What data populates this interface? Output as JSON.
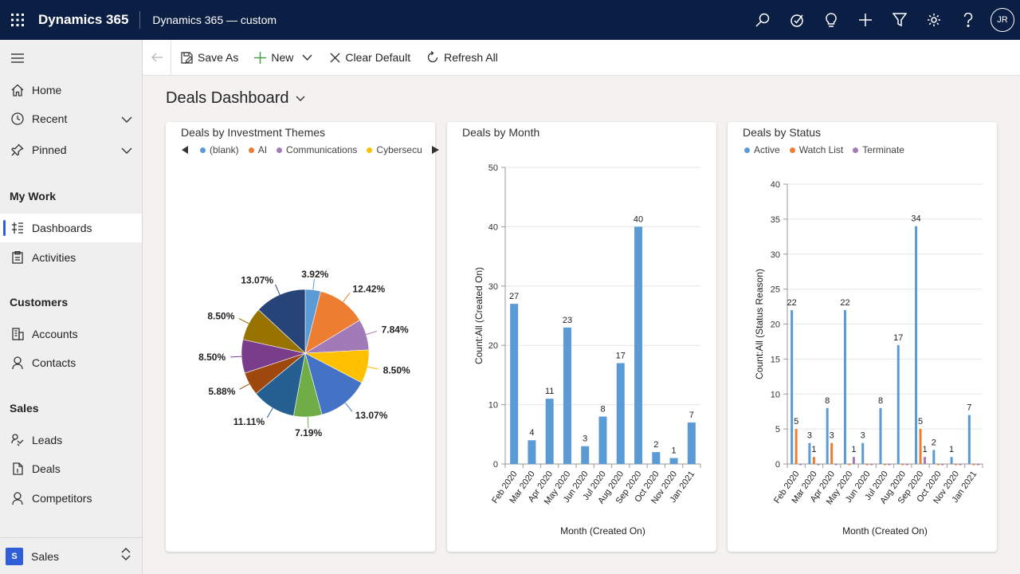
{
  "topbar": {
    "app_name": "Dynamics 365",
    "app_subtitle": "Dynamics 365 — custom",
    "user_initials": "JR"
  },
  "sidebar": {
    "home": "Home",
    "recent": "Recent",
    "pinned": "Pinned",
    "my_work_heading": "My Work",
    "dashboards": "Dashboards",
    "activities": "Activities",
    "customers_heading": "Customers",
    "accounts": "Accounts",
    "contacts": "Contacts",
    "sales_heading": "Sales",
    "leads": "Leads",
    "deals": "Deals",
    "competitors": "Competitors",
    "area_initial": "S",
    "area_label": "Sales"
  },
  "commandbar": {
    "save_as": "Save As",
    "new": "New",
    "clear_default": "Clear Default",
    "refresh_all": "Refresh All"
  },
  "page_title": "Deals Dashboard",
  "colors": {
    "accent": "#2f5fd8",
    "active": "#5b9bd5",
    "watch_list": "#ed7d31",
    "terminate": "#8e5ea2"
  },
  "chart_data": [
    {
      "type": "pie",
      "title": "Deals by Investment Themes",
      "legend": [
        {
          "name": "(blank)",
          "color": "#5b9bd5"
        },
        {
          "name": "AI",
          "color": "#ed7d31"
        },
        {
          "name": "Communications",
          "color": "#a37ab8"
        },
        {
          "name": "Cybersecu",
          "color": "#ffc000"
        }
      ],
      "slices": [
        {
          "label": "3.92%",
          "value": 3.92,
          "color": "#5b9bd5"
        },
        {
          "label": "12.42%",
          "value": 12.42,
          "color": "#ed7d31"
        },
        {
          "label": "7.84%",
          "value": 7.84,
          "color": "#a37ab8"
        },
        {
          "label": "8.50%",
          "value": 8.5,
          "color": "#ffc000"
        },
        {
          "label": "13.07%",
          "value": 13.07,
          "color": "#4472c4"
        },
        {
          "label": "7.19%",
          "value": 7.19,
          "color": "#70ad47"
        },
        {
          "label": "11.11%",
          "value": 11.11,
          "color": "#255e91"
        },
        {
          "label": "5.88%",
          "value": 5.88,
          "color": "#9e480e"
        },
        {
          "label": "8.50%",
          "value": 8.5,
          "color": "#7a3d8c"
        },
        {
          "label": "8.50%",
          "value": 8.5,
          "color": "#997300"
        },
        {
          "label": "13.07%",
          "value": 13.07,
          "color": "#264478"
        }
      ]
    },
    {
      "type": "bar",
      "title": "Deals by Month",
      "categories": [
        "Feb 2020",
        "Mar 2020",
        "Apr 2020",
        "May 2020",
        "Jun 2020",
        "Jul 2020",
        "Aug 2020",
        "Sep 2020",
        "Oct 2020",
        "Nov 2020",
        "Jan 2021"
      ],
      "values": [
        27,
        4,
        11,
        23,
        3,
        8,
        17,
        40,
        2,
        1,
        7
      ],
      "xlabel": "Month (Created On)",
      "ylabel": "Count:All (Created On)",
      "ylim": [
        0,
        50
      ],
      "yticks": [
        0,
        10,
        20,
        30,
        40,
        50
      ],
      "color": "#5b9bd5"
    },
    {
      "type": "bar",
      "title": "Deals by Status",
      "legend": [
        "Active",
        "Watch List",
        "Terminate"
      ],
      "categories": [
        "Feb 2020",
        "Mar 2020",
        "Apr 2020",
        "May 2020",
        "Jun 2020",
        "Jul 2020",
        "Aug 2020",
        "Sep 2020",
        "Oct 2020",
        "Nov 2020",
        "Jan 2021"
      ],
      "series": [
        {
          "name": "Active",
          "color": "#5b9bd5",
          "values": [
            22,
            3,
            8,
            22,
            3,
            8,
            17,
            34,
            2,
            1,
            7
          ]
        },
        {
          "name": "Watch List",
          "color": "#ed7d31",
          "values": [
            5,
            1,
            3,
            0,
            0,
            0,
            0,
            5,
            0,
            0,
            0
          ]
        },
        {
          "name": "Terminate",
          "color": "#a37ab8",
          "values": [
            0,
            0,
            0,
            1,
            0,
            0,
            0,
            1,
            0,
            0,
            0
          ]
        }
      ],
      "point_labels": [
        {
          "series": "Active",
          "index": 0,
          "text": "22"
        },
        {
          "series": "Watch List",
          "index": 0,
          "text": "5"
        },
        {
          "series": "Active",
          "index": 1,
          "text": "3"
        },
        {
          "series": "Watch List",
          "index": 1,
          "text": "1"
        },
        {
          "series": "Active",
          "index": 2,
          "text": "8"
        },
        {
          "series": "Watch List",
          "index": 2,
          "text": "3"
        },
        {
          "series": "Active",
          "index": 3,
          "text": "22"
        },
        {
          "series": "Terminate",
          "index": 3,
          "text": "1"
        },
        {
          "series": "Active",
          "index": 4,
          "text": "3"
        },
        {
          "series": "Active",
          "index": 5,
          "text": "8"
        },
        {
          "series": "Active",
          "index": 6,
          "text": "17"
        },
        {
          "series": "Active",
          "index": 7,
          "text": "34"
        },
        {
          "series": "Watch List",
          "index": 7,
          "text": "5"
        },
        {
          "series": "Terminate",
          "index": 7,
          "text": "1"
        },
        {
          "series": "Active",
          "index": 8,
          "text": "2"
        },
        {
          "series": "Active",
          "index": 9,
          "text": "1"
        },
        {
          "series": "Active",
          "index": 10,
          "text": "7"
        }
      ],
      "xlabel": "Month (Created On)",
      "ylabel": "Count:All (Status Reason)",
      "ylim": [
        0,
        40
      ],
      "yticks": [
        0,
        5,
        10,
        15,
        20,
        25,
        30,
        35,
        40
      ]
    }
  ]
}
